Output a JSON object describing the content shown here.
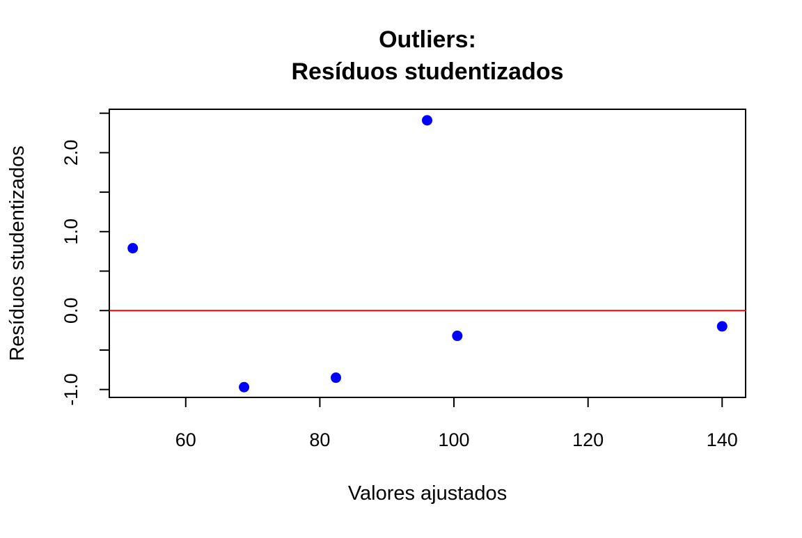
{
  "chart_data": {
    "type": "scatter",
    "title": [
      "Outliers:",
      "Resíduos studentizados"
    ],
    "xlabel": "Valores ajustados",
    "ylabel": "Resíduos studentizados",
    "x": [
      52.1,
      68.7,
      82.4,
      96.0,
      100.5,
      140.0
    ],
    "values": [
      0.79,
      -0.97,
      -0.85,
      2.41,
      -0.32,
      -0.2
    ],
    "color": "#0000ff",
    "hline": 0,
    "hline_color": "#ff0000",
    "xlim": [
      48.6,
      143.5
    ],
    "xticks": [
      60,
      80,
      100,
      120,
      140
    ],
    "ylim": [
      -1.1,
      2.55
    ],
    "yticks": [
      {
        "value": -1,
        "label": "-1.0"
      },
      {
        "value": 0,
        "label": "0.0"
      },
      {
        "value": 1,
        "label": "1.0"
      },
      {
        "value": 2,
        "label": "2.0"
      }
    ],
    "yminorticks": [
      -0.5,
      0.5,
      1.5,
      2.5
    ]
  }
}
